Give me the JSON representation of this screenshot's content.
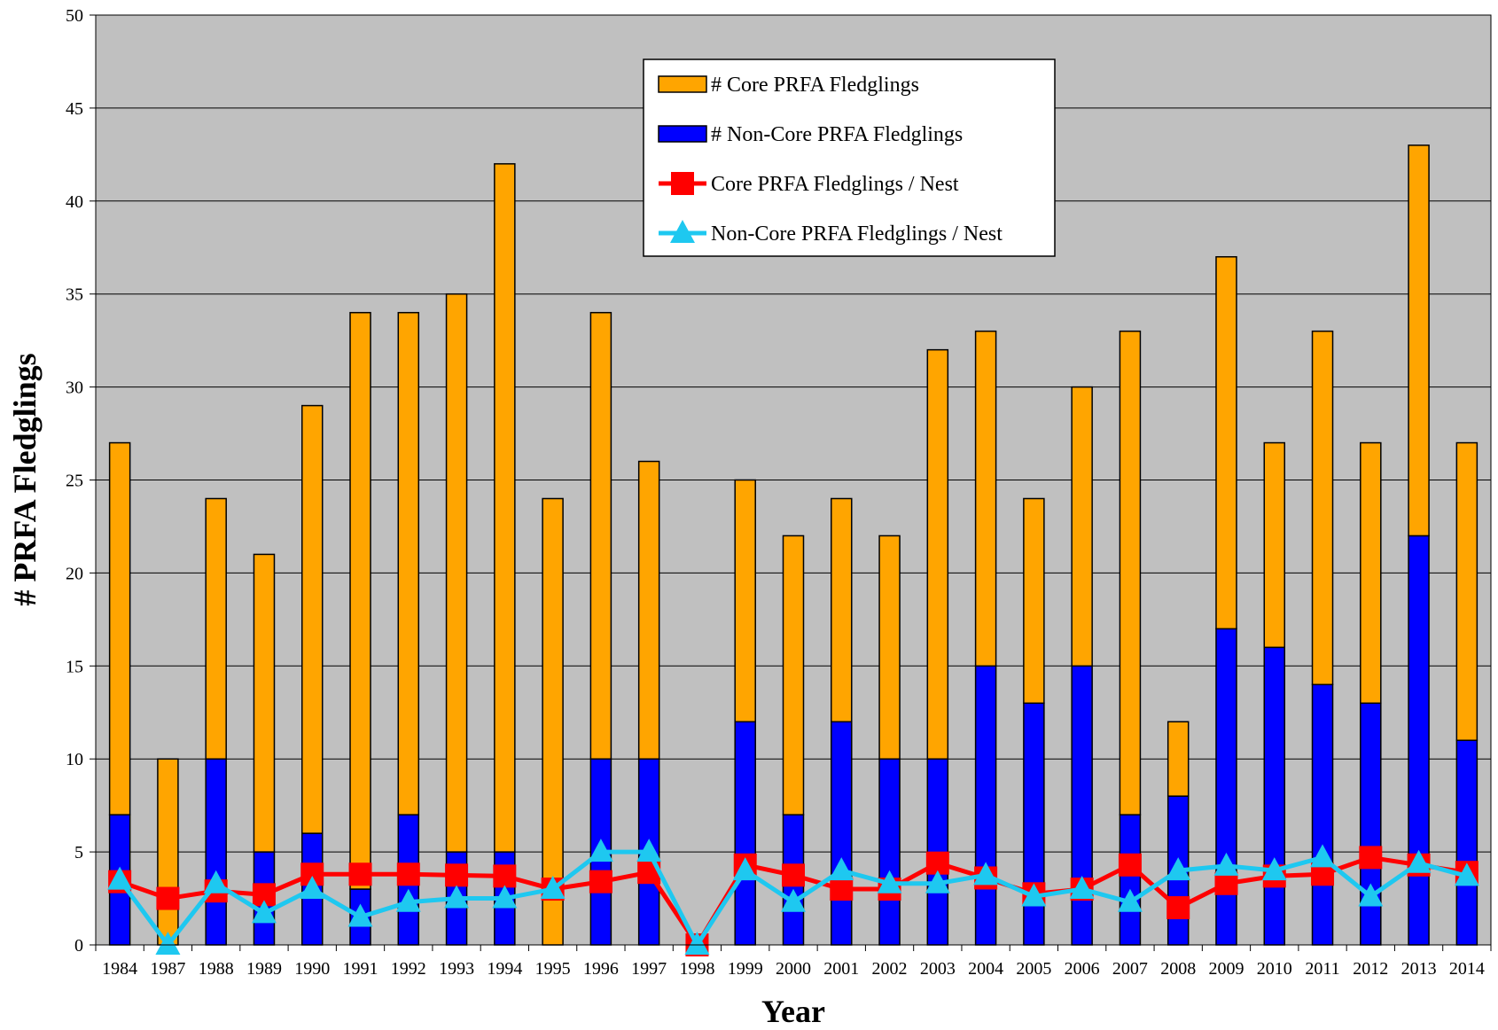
{
  "chart_data": {
    "type": "bar",
    "stacked": true,
    "title": "",
    "xlabel": "Year",
    "ylabel": "# PRFA Fledglings",
    "ylim": [
      0,
      50
    ],
    "ytick_step": 5,
    "grid": true,
    "legend_position": "top-right",
    "categories": [
      "1984",
      "1987",
      "1988",
      "1989",
      "1990",
      "1991",
      "1992",
      "1993",
      "1994",
      "1995",
      "1996",
      "1997",
      "1998",
      "1999",
      "2000",
      "2001",
      "2002",
      "2003",
      "2004",
      "2005",
      "2006",
      "2007",
      "2008",
      "2009",
      "2010",
      "2011",
      "2012",
      "2013",
      "2014"
    ],
    "series": [
      {
        "name": "# Non-Core PRFA Fledglings",
        "kind": "bar",
        "color": "#0000ff",
        "values": [
          7,
          0,
          10,
          5,
          6,
          3,
          7,
          5,
          5,
          0,
          10,
          10,
          0,
          12,
          7,
          12,
          10,
          10,
          15,
          13,
          15,
          7,
          8,
          17,
          16,
          14,
          13,
          22,
          11
        ]
      },
      {
        "name": "# Core PRFA Fledglings",
        "kind": "bar",
        "color": "#ffa500",
        "values": [
          20,
          10,
          14,
          16,
          23,
          31,
          27,
          30,
          37,
          24,
          24,
          16,
          0,
          13,
          15,
          12,
          12,
          22,
          18,
          11,
          15,
          26,
          4,
          20,
          11,
          19,
          14,
          21,
          16
        ]
      },
      {
        "name": "Core PRFA Fledglings / Nest",
        "kind": "line",
        "marker": "square",
        "color": "#ff0000",
        "values": [
          3.4,
          2.5,
          2.9,
          2.7,
          3.8,
          3.8,
          3.8,
          3.75,
          3.7,
          3.0,
          3.4,
          3.9,
          0,
          4.3,
          3.75,
          3.0,
          3.0,
          4.4,
          3.6,
          2.75,
          3.0,
          4.3,
          2.0,
          3.3,
          3.7,
          3.8,
          4.7,
          4.3,
          3.9
        ]
      },
      {
        "name": "Non-Core PRFA Fledglings / Nest",
        "kind": "line",
        "marker": "triangle",
        "color": "#1ec8f0",
        "values": [
          3.5,
          0,
          3.3,
          1.7,
          3.0,
          1.5,
          2.3,
          2.5,
          2.5,
          3.0,
          5.0,
          5.0,
          0,
          4.0,
          2.3,
          4.0,
          3.3,
          3.3,
          3.75,
          2.6,
          3.0,
          2.3,
          4.0,
          4.25,
          4.0,
          4.7,
          2.6,
          4.4,
          3.7
        ]
      }
    ]
  }
}
